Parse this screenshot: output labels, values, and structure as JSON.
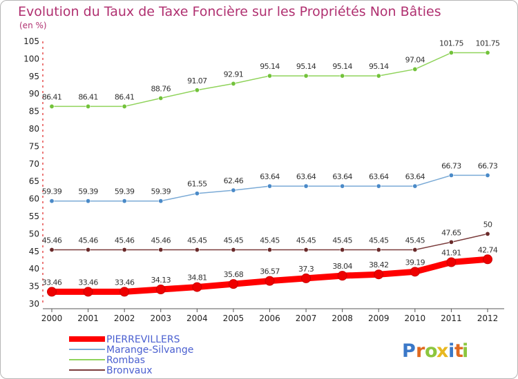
{
  "chart_data": {
    "type": "line",
    "title": "Evolution du Taux de Taxe Foncière sur les Propriétés Non Bâties",
    "subtitle": "(en %)",
    "x": [
      "2000",
      "2001",
      "2002",
      "2003",
      "2004",
      "2005",
      "2006",
      "2007",
      "2008",
      "2009",
      "2010",
      "2011",
      "2012"
    ],
    "ylim": [
      30,
      105
    ],
    "yticks": [
      30,
      35,
      40,
      45,
      50,
      55,
      60,
      65,
      70,
      75,
      80,
      85,
      90,
      95,
      100,
      105
    ],
    "grid": false,
    "legend_position": "bottom-left",
    "series": [
      {
        "name": "Rombas",
        "color": "#8fd35a",
        "point_color": "#72c23a",
        "values": [
          86.41,
          86.41,
          86.41,
          88.76,
          91.07,
          92.91,
          95.14,
          95.14,
          95.14,
          95.14,
          97.04,
          101.75,
          101.75
        ],
        "labels": [
          "86.41",
          "86.41",
          "86.41",
          "88.76",
          "91.07",
          "92.91",
          "95.14",
          "95.14",
          "95.14",
          "95.14",
          "97.04",
          "101.75",
          "101.75"
        ]
      },
      {
        "name": "Marange-Silvange",
        "color": "#7aaad6",
        "point_color": "#4a8ac8",
        "values": [
          59.39,
          59.39,
          59.39,
          59.39,
          61.55,
          62.46,
          63.64,
          63.64,
          63.64,
          63.64,
          63.64,
          66.73,
          66.73
        ],
        "labels": [
          "59.39",
          "59.39",
          "59.39",
          "59.39",
          "61.55",
          "62.46",
          "63.64",
          "63.64",
          "63.64",
          "63.64",
          "63.64",
          "66.73",
          "66.73"
        ]
      },
      {
        "name": "Bronvaux",
        "color": "#7a3b3b",
        "point_color": "#6a2a2a",
        "values": [
          45.46,
          45.46,
          45.46,
          45.46,
          45.45,
          45.45,
          45.45,
          45.45,
          45.45,
          45.45,
          45.45,
          47.65,
          50
        ],
        "labels": [
          "45.46",
          "45.46",
          "45.46",
          "45.46",
          "45.45",
          "45.45",
          "45.45",
          "45.45",
          "45.45",
          "45.45",
          "45.45",
          "47.65",
          "50"
        ]
      },
      {
        "name": "PIERREVILLERS",
        "color": "#ff0000",
        "point_color": "#ee0000",
        "values": [
          33.46,
          33.46,
          33.46,
          34.13,
          34.81,
          35.68,
          36.57,
          37.3,
          38.04,
          38.42,
          39.19,
          41.91,
          42.74
        ],
        "labels": [
          "33.46",
          "33.46",
          "33.46",
          "34.13",
          "34.81",
          "35.68",
          "36.57",
          "37.3",
          "38.04",
          "38.42",
          "39.19",
          "41.91",
          "42.74"
        ]
      }
    ]
  },
  "legend": {
    "items": [
      {
        "name": "PIERREVILLERS",
        "color": "#ff0000"
      },
      {
        "name": "Marange-Silvange",
        "color": "#7aaad6"
      },
      {
        "name": "Rombas",
        "color": "#8fd35a"
      },
      {
        "name": "Bronvaux",
        "color": "#7a3b3b"
      }
    ]
  },
  "logo": {
    "letters": [
      "P",
      "r",
      "o",
      "x",
      "i",
      "t",
      "i"
    ],
    "colors": [
      "#3a78c8",
      "#e06a20",
      "#8cc63e",
      "#e8b820",
      "#3a78c8",
      "#e06a20",
      "#8cc63e"
    ]
  }
}
